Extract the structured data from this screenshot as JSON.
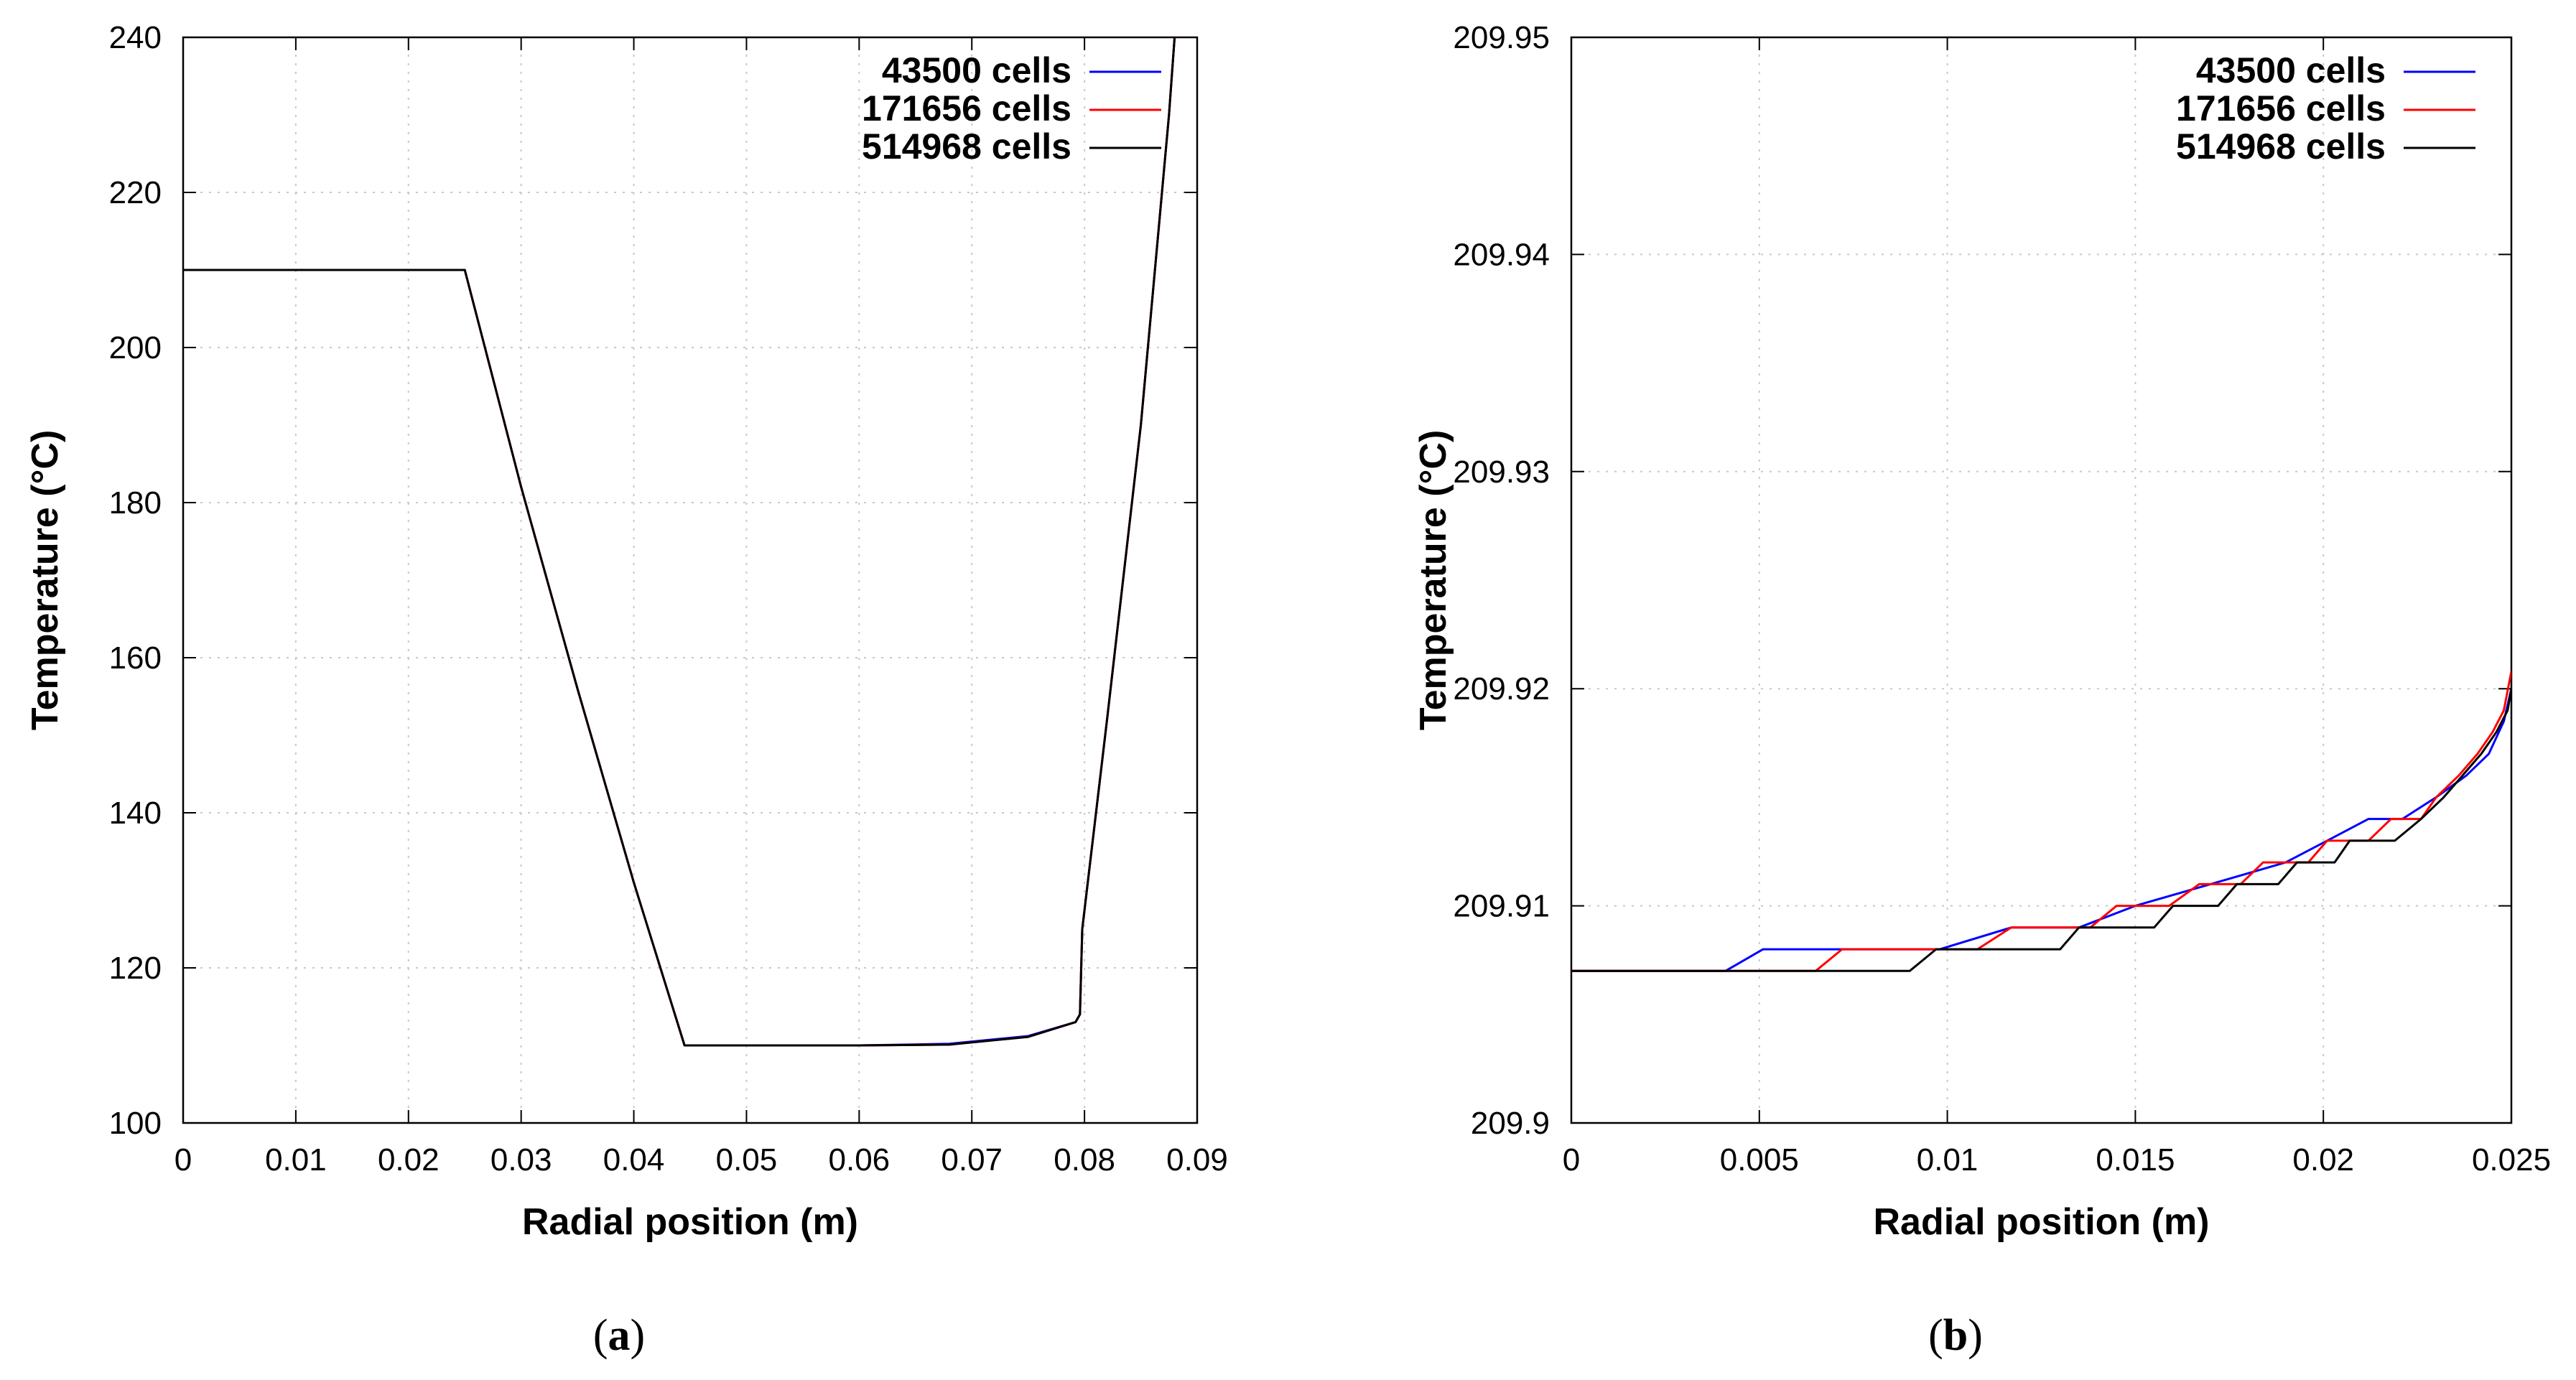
{
  "panels": [
    {
      "caption_open": "(",
      "caption_letter": "a",
      "caption_close": ")"
    },
    {
      "caption_open": "(",
      "caption_letter": "b",
      "caption_close": ")"
    }
  ],
  "chart_data": [
    {
      "type": "line",
      "xlabel": "Radial position (m)",
      "ylabel": "Temperature (°C)",
      "xlim": [
        0,
        0.09
      ],
      "ylim": [
        100,
        240
      ],
      "xticks": [
        "0",
        "0.01",
        "0.02",
        "0.03",
        "0.04",
        "0.05",
        "0.06",
        "0.07",
        "0.08",
        "0.09"
      ],
      "yticks": [
        "100",
        "120",
        "140",
        "160",
        "180",
        "200",
        "220",
        "240"
      ],
      "grid": true,
      "legend_position": "top-right",
      "series": [
        {
          "name": "43500 cells",
          "color": "#0000ff",
          "points": [
            [
              0,
              210
            ],
            [
              0.025,
              210
            ],
            [
              0.03,
              182
            ],
            [
              0.035,
              156
            ],
            [
              0.04,
              131
            ],
            [
              0.0445,
              110
            ],
            [
              0.06,
              110
            ],
            [
              0.068,
              110.2
            ],
            [
              0.075,
              111.2
            ],
            [
              0.0792,
              113
            ],
            [
              0.0796,
              114
            ],
            [
              0.0798,
              125
            ],
            [
              0.082,
              152
            ],
            [
              0.085,
              190
            ],
            [
              0.0875,
              230
            ],
            [
              0.088,
              240
            ]
          ]
        },
        {
          "name": "171656 cells",
          "color": "#ff0000",
          "points": [
            [
              0,
              210
            ],
            [
              0.025,
              210
            ],
            [
              0.03,
              182
            ],
            [
              0.035,
              156
            ],
            [
              0.04,
              131
            ],
            [
              0.0445,
              110
            ],
            [
              0.06,
              110
            ],
            [
              0.068,
              110.1
            ],
            [
              0.075,
              111.1
            ],
            [
              0.0792,
              113
            ],
            [
              0.0796,
              114
            ],
            [
              0.0798,
              125
            ],
            [
              0.082,
              152
            ],
            [
              0.085,
              190
            ],
            [
              0.0875,
              230
            ],
            [
              0.088,
              240
            ]
          ]
        },
        {
          "name": "514968 cells",
          "color": "#000000",
          "points": [
            [
              0,
              210
            ],
            [
              0.025,
              210
            ],
            [
              0.03,
              182
            ],
            [
              0.035,
              156
            ],
            [
              0.04,
              131
            ],
            [
              0.0445,
              110
            ],
            [
              0.06,
              110
            ],
            [
              0.068,
              110.1
            ],
            [
              0.075,
              111.1
            ],
            [
              0.0792,
              113
            ],
            [
              0.0796,
              114
            ],
            [
              0.0798,
              125
            ],
            [
              0.082,
              152
            ],
            [
              0.085,
              190
            ],
            [
              0.0875,
              230
            ],
            [
              0.088,
              240
            ]
          ]
        }
      ]
    },
    {
      "type": "line",
      "xlabel": "Radial position (m)",
      "ylabel": "Temperature (°C)",
      "xlim": [
        0,
        0.025
      ],
      "ylim": [
        209.9,
        209.95
      ],
      "xticks": [
        "0",
        "0.005",
        "0.01",
        "0.015",
        "0.02",
        "0.025"
      ],
      "yticks": [
        "209.9",
        "209.91",
        "209.92",
        "209.93",
        "209.94",
        "209.95"
      ],
      "grid": true,
      "legend_position": "top-right",
      "series": [
        {
          "name": "43500 cells",
          "color": "#0000ff",
          "points": [
            [
              0,
              209.907
            ],
            [
              0.0041,
              209.907
            ],
            [
              0.0051,
              209.908
            ],
            [
              0.0098,
              209.908
            ],
            [
              0.0117,
              209.909
            ],
            [
              0.0135,
              209.909
            ],
            [
              0.015,
              209.91
            ],
            [
              0.017,
              209.911
            ],
            [
              0.019,
              209.912
            ],
            [
              0.0201,
              209.913
            ],
            [
              0.0212,
              209.914
            ],
            [
              0.0221,
              209.914
            ],
            [
              0.023,
              209.915
            ],
            [
              0.0238,
              209.916
            ],
            [
              0.0244,
              209.917
            ],
            [
              0.0248,
              209.9185
            ],
            [
              0.025,
              209.92
            ]
          ]
        },
        {
          "name": "171656 cells",
          "color": "#ff0000",
          "points": [
            [
              0,
              209.907
            ],
            [
              0.0065,
              209.907
            ],
            [
              0.0072,
              209.908
            ],
            [
              0.0108,
              209.908
            ],
            [
              0.0117,
              209.909
            ],
            [
              0.0138,
              209.909
            ],
            [
              0.0145,
              209.91
            ],
            [
              0.0159,
              209.91
            ],
            [
              0.0167,
              209.911
            ],
            [
              0.0178,
              209.911
            ],
            [
              0.0184,
              209.912
            ],
            [
              0.0196,
              209.912
            ],
            [
              0.0201,
              209.913
            ],
            [
              0.0207,
              209.913
            ],
            [
              0.0212,
              209.913
            ],
            [
              0.0218,
              209.914
            ],
            [
              0.0226,
              209.914
            ],
            [
              0.023,
              209.915
            ],
            [
              0.0236,
              209.916
            ],
            [
              0.0241,
              209.917
            ],
            [
              0.0245,
              209.918
            ],
            [
              0.0248,
              209.919
            ],
            [
              0.025,
              209.9208
            ]
          ]
        },
        {
          "name": "514968 cells",
          "color": "#000000",
          "points": [
            [
              0,
              209.907
            ],
            [
              0.009,
              209.907
            ],
            [
              0.0097,
              209.908
            ],
            [
              0.013,
              209.908
            ],
            [
              0.0135,
              209.909
            ],
            [
              0.0155,
              209.909
            ],
            [
              0.016,
              209.91
            ],
            [
              0.0172,
              209.91
            ],
            [
              0.0177,
              209.911
            ],
            [
              0.0188,
              209.911
            ],
            [
              0.0193,
              209.912
            ],
            [
              0.0203,
              209.912
            ],
            [
              0.0207,
              209.913
            ],
            [
              0.0216,
              209.913
            ],
            [
              0.0219,
              209.913
            ],
            [
              0.0226,
              209.914
            ],
            [
              0.0232,
              209.915
            ],
            [
              0.0237,
              209.916
            ],
            [
              0.0242,
              209.917
            ],
            [
              0.0246,
              209.918
            ],
            [
              0.0249,
              209.919
            ],
            [
              0.025,
              209.92
            ]
          ]
        }
      ]
    }
  ]
}
